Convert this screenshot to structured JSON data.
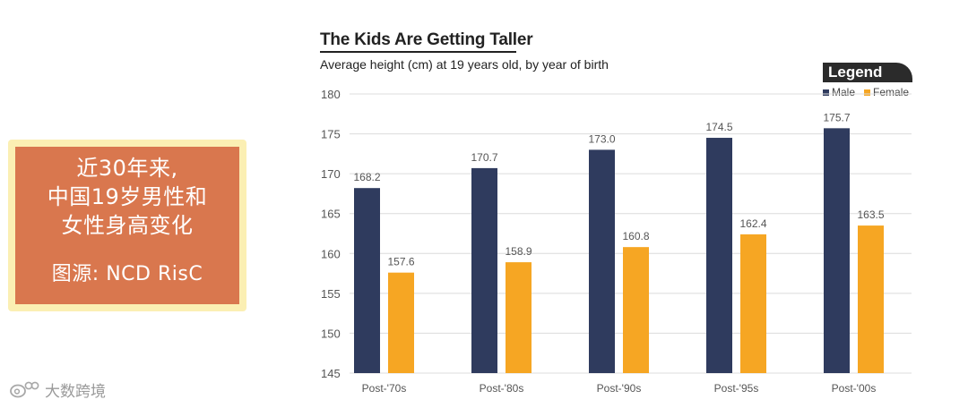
{
  "caption": {
    "lines": [
      "近30年来,",
      "中国19岁男性和",
      "女性身高变化"
    ],
    "source": "图源:  NCD  RisC"
  },
  "watermark": {
    "text": "大数跨境",
    "icon": "weibo-icon"
  },
  "legend": {
    "title": "Legend"
  },
  "colors": {
    "male": "#2f3b5e",
    "female": "#f6a623",
    "grid": "#dcdcdc",
    "axis_text": "#555555",
    "label_text": "#555555"
  },
  "chart_data": {
    "type": "bar",
    "title": "The Kids Are Getting Taller",
    "subtitle": "Average height (cm) at 19 years old, by year of birth",
    "categories": [
      "Post-'70s",
      "Post-'80s",
      "Post-'90s",
      "Post-'95s",
      "Post-'00s"
    ],
    "series": [
      {
        "name": "Male",
        "values": [
          168.2,
          170.7,
          173.0,
          174.5,
          175.7
        ],
        "labels": [
          "168.2",
          "170.7",
          "173.0",
          "174.5",
          "175.7"
        ]
      },
      {
        "name": "Female",
        "values": [
          157.6,
          158.9,
          160.8,
          162.4,
          163.5
        ],
        "labels": [
          "157.6",
          "158.9",
          "160.8",
          "162.4",
          "163.5"
        ]
      }
    ],
    "ylim": [
      145,
      180
    ],
    "yticks": [
      145,
      150,
      155,
      160,
      165,
      170,
      175,
      180
    ],
    "grid": true,
    "legend_position": "top-right"
  }
}
